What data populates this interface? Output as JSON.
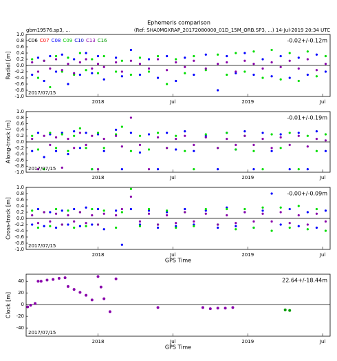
{
  "header": {
    "title": "Ephemeris comparison",
    "left": "gbm19576.sp3, ...",
    "right": "(Ref: SHA0MGXRAP_20172080000_01D_15M_ORB.SP3, ...)   14-Jul-2019 20:34 UTC"
  },
  "chart_data": [
    {
      "type": "scatter",
      "ylabel": "Radial [m]",
      "annotation": "-0.02+/-0.12m",
      "date_note": "2017/07/15",
      "legend": [
        {
          "name": "C06",
          "color": "#000000"
        },
        {
          "name": "C07",
          "color": "#ff0000"
        },
        {
          "name": "C08",
          "color": "#0000ff"
        },
        {
          "name": "C09",
          "color": "#00cc00"
        },
        {
          "name": "C10",
          "color": "#0000cc"
        },
        {
          "name": "C13",
          "color": "#8800aa"
        },
        {
          "name": "C16",
          "color": "#009900"
        }
      ],
      "xlim": [
        2017.52,
        2019.55
      ],
      "xticks": [
        {
          "value": 2018,
          "label": "2018"
        },
        {
          "value": 2018.5,
          "label": "Jul"
        },
        {
          "value": 2019,
          "label": "2019"
        },
        {
          "value": 2019.5,
          "label": "Jul"
        }
      ],
      "ylim": [
        -1,
        1
      ],
      "yticks": [
        {
          "value": -1,
          "label": "-1.0"
        },
        {
          "value": -0.8,
          "label": "-0.8"
        },
        {
          "value": -0.6,
          "label": "-0.6"
        },
        {
          "value": -0.4,
          "label": "-0.4"
        },
        {
          "value": -0.2,
          "label": "-0.2"
        },
        {
          "value": 0,
          "label": "0.0"
        },
        {
          "value": 0.2,
          "label": "0.2"
        },
        {
          "value": 0.4,
          "label": "0.4"
        },
        {
          "value": 0.6,
          "label": "0.6"
        },
        {
          "value": 0.8,
          "label": "0.8"
        },
        {
          "value": 1,
          "label": "1.0"
        }
      ],
      "x": [
        2017.56,
        2017.6,
        2017.64,
        2017.68,
        2017.72,
        2017.76,
        2017.8,
        2017.84,
        2017.88,
        2017.92,
        2017.96,
        2018.0,
        2018.04,
        2018.12,
        2018.16,
        2018.22,
        2018.28,
        2018.34,
        2018.4,
        2018.46,
        2018.52,
        2018.58,
        2018.64,
        2018.72,
        2018.8,
        2018.86,
        2018.92,
        2018.98,
        2019.04,
        2019.1,
        2019.16,
        2019.22,
        2019.28,
        2019.34,
        2019.4,
        2019.46,
        2019.52
      ],
      "series": [
        {
          "color": "#0000ff",
          "values": [
            -0.3,
            0.25,
            -0.5,
            0.3,
            -0.2,
            0.35,
            -0.6,
            0.2,
            -0.3,
            0.4,
            -0.25,
            0.3,
            -0.45,
            0.25,
            -0.35,
            0.5,
            -0.3,
            0.2,
            -0.4,
            0.3,
            -0.5,
            0.25,
            -0.3,
            0.35,
            -0.8,
            0.3,
            -0.25,
            0.4,
            -0.3,
            0.2,
            -0.35,
            0.3,
            -0.4,
            0.25,
            -0.3,
            0.35,
            -0.2
          ]
        },
        {
          "color": "#00dd00",
          "values": [
            0.2,
            -0.4,
            0.15,
            -0.7,
            0.3,
            -0.2,
            0.25,
            -0.3,
            0.4,
            -0.15,
            0.2,
            -0.25,
            0.3,
            -0.2,
            0.15,
            -0.3,
            0.25,
            -0.2,
            0.3,
            -0.6,
            0.2,
            -0.25,
            0.3,
            -0.15,
            0.35,
            -0.3,
            0.4,
            -0.2,
            0.45,
            -0.4,
            0.5,
            -0.45,
            0.4,
            -0.5,
            0.45,
            -0.35,
            0.3
          ]
        },
        {
          "color": "#8800aa",
          "values": [
            0.1,
            -0.2,
            0.15,
            -0.1,
            0.2,
            -0.15,
            0.05,
            -0.25,
            0.1,
            0.2,
            -0.1,
            0.05,
            -0.05,
            0.1,
            -0.2,
            0.15,
            0.05,
            -0.1,
            0.2,
            -0.15,
            0.1,
            -0.05,
            0.15,
            -0.1,
            0.05,
            0.1,
            -0.2,
            0.15,
            0.05,
            -0.1,
            0.1,
            -0.05,
            0.15,
            -0.1,
            0.2,
            -0.15,
            0.05
          ]
        }
      ]
    },
    {
      "type": "scatter",
      "ylabel": "Along-track [m]",
      "annotation": "-0.01+/-0.19m",
      "date_note": "2017/07/15",
      "xlim": [
        2017.52,
        2019.55
      ],
      "xticks": [
        {
          "value": 2018,
          "label": "2018"
        },
        {
          "value": 2018.5,
          "label": "Jul"
        },
        {
          "value": 2019,
          "label": "2019"
        },
        {
          "value": 2019.5,
          "label": "Jul"
        }
      ],
      "ylim": [
        -1,
        1
      ],
      "yticks": [
        {
          "value": -1,
          "label": "-1.0"
        },
        {
          "value": -0.8,
          "label": "-0.8"
        },
        {
          "value": -0.6,
          "label": "-0.6"
        },
        {
          "value": -0.4,
          "label": "-0.4"
        },
        {
          "value": -0.2,
          "label": "-0.2"
        },
        {
          "value": 0,
          "label": "0.0"
        },
        {
          "value": 0.2,
          "label": "0.2"
        },
        {
          "value": 0.4,
          "label": "0.4"
        },
        {
          "value": 0.6,
          "label": "0.6"
        },
        {
          "value": 0.8,
          "label": "0.8"
        },
        {
          "value": 1,
          "label": "1.0"
        }
      ],
      "x": [
        2017.56,
        2017.6,
        2017.64,
        2017.68,
        2017.72,
        2017.76,
        2017.8,
        2017.84,
        2017.88,
        2017.92,
        2017.96,
        2018.0,
        2018.04,
        2018.12,
        2018.16,
        2018.22,
        2018.28,
        2018.34,
        2018.4,
        2018.46,
        2018.52,
        2018.58,
        2018.64,
        2018.72,
        2018.8,
        2018.86,
        2018.92,
        2018.98,
        2019.04,
        2019.1,
        2019.16,
        2019.22,
        2019.28,
        2019.34,
        2019.4,
        2019.46,
        2019.52
      ],
      "series": [
        {
          "color": "#0000ff",
          "values": [
            -0.3,
            0.3,
            -0.5,
            0.25,
            -0.3,
            0.3,
            -0.4,
            0.35,
            -0.2,
            0.3,
            -0.9,
            0.25,
            -0.3,
            0.4,
            -0.9,
            0.3,
            -0.35,
            0.25,
            -0.9,
            0.3,
            -0.25,
            0.35,
            -0.3,
            0.2,
            -0.9,
            0.3,
            -0.25,
            0.35,
            -0.9,
            0.3,
            -0.3,
            0.25,
            -0.9,
            0.3,
            -0.9,
            0.35,
            -0.3
          ]
        },
        {
          "color": "#00dd00",
          "values": [
            0.2,
            -0.25,
            -0.9,
            0.3,
            -0.2,
            0.25,
            -0.3,
            0.2,
            0.45,
            -0.2,
            -0.9,
            0.3,
            -0.2,
            0.25,
            0.5,
            -0.3,
            0.2,
            -0.25,
            0.3,
            -0.2,
            0.2,
            -0.3,
            -0.9,
            0.25,
            -0.2,
            0.3,
            -0.25,
            0.2,
            -0.3,
            -0.9,
            0.25,
            -0.2,
            0.3,
            -0.9,
            0.2,
            -0.3,
            0.25
          ]
        },
        {
          "color": "#8800aa",
          "values": [
            0.1,
            -0.9,
            0.2,
            -0.1,
            0.15,
            -0.85,
            0.1,
            -0.2,
            0.3,
            -0.1,
            0.2,
            -0.9,
            0.1,
            0.2,
            -0.15,
            0.8,
            -0.1,
            -0.9,
            0.15,
            -0.2,
            0.1,
            0.2,
            -0.1,
            0.15,
            -0.2,
            0.1,
            -0.1,
            0.2,
            -0.1,
            0.1,
            -0.2,
            0.15,
            -0.1,
            0.2,
            -0.15,
            0.1,
            0.05
          ]
        }
      ]
    },
    {
      "type": "scatter",
      "ylabel": "Cross-track [m]",
      "annotation": "-0.00+/-0.09m",
      "date_note": "2017/07/15",
      "xlabel": "GPS Time",
      "xlim": [
        2017.52,
        2019.55
      ],
      "xticks": [
        {
          "value": 2018,
          "label": "2018"
        },
        {
          "value": 2018.5,
          "label": "Jul"
        },
        {
          "value": 2019,
          "label": "2019"
        },
        {
          "value": 2019.5,
          "label": "Jul"
        }
      ],
      "ylim": [
        -1,
        1
      ],
      "yticks": [
        {
          "value": -1,
          "label": "-1.0"
        },
        {
          "value": -0.8,
          "label": "-0.8"
        },
        {
          "value": -0.6,
          "label": "-0.6"
        },
        {
          "value": -0.4,
          "label": "-0.4"
        },
        {
          "value": -0.2,
          "label": "-0.2"
        },
        {
          "value": 0,
          "label": "0.0"
        },
        {
          "value": 0.2,
          "label": "0.2"
        },
        {
          "value": 0.4,
          "label": "0.4"
        },
        {
          "value": 0.6,
          "label": "0.6"
        },
        {
          "value": 0.8,
          "label": "0.8"
        },
        {
          "value": 1,
          "label": "1.0"
        }
      ],
      "x": [
        2017.56,
        2017.6,
        2017.64,
        2017.68,
        2017.72,
        2017.76,
        2017.8,
        2017.84,
        2017.88,
        2017.92,
        2017.96,
        2018.0,
        2018.04,
        2018.12,
        2018.16,
        2018.22,
        2018.28,
        2018.34,
        2018.4,
        2018.46,
        2018.52,
        2018.58,
        2018.64,
        2018.72,
        2018.8,
        2018.86,
        2018.92,
        2018.98,
        2019.04,
        2019.1,
        2019.16,
        2019.22,
        2019.28,
        2019.34,
        2019.4,
        2019.46,
        2019.52
      ],
      "series": [
        {
          "color": "#0000ff",
          "values": [
            -0.2,
            0.3,
            -0.25,
            0.2,
            -0.3,
            0.25,
            -0.2,
            0.3,
            -0.25,
            0.35,
            -0.2,
            0.3,
            -0.35,
            0.25,
            -0.85,
            0.3,
            -0.2,
            0.25,
            -0.3,
            0.2,
            -0.25,
            0.3,
            -0.2,
            0.25,
            -0.3,
            0.35,
            -0.25,
            0.2,
            -0.3,
            0.25,
            0.8,
            -0.2,
            0.3,
            -0.25,
            0.2,
            -0.3,
            0.25
          ]
        },
        {
          "color": "#00dd00",
          "values": [
            0.25,
            -0.3,
            0.2,
            -0.25,
            0.3,
            -0.2,
            0.25,
            -0.3,
            0.2,
            -0.25,
            0.3,
            -0.2,
            0.25,
            -0.3,
            0.2,
            0.95,
            -0.25,
            0.3,
            -0.2,
            0.25,
            -0.3,
            0.2,
            -0.25,
            0.3,
            -0.2,
            0.3,
            -0.35,
            0.3,
            -0.3,
            0.35,
            -0.4,
            0.35,
            -0.3,
            0.4,
            -0.35,
            0.3,
            -0.4
          ]
        },
        {
          "color": "#8800aa",
          "values": [
            0.1,
            -0.15,
            0.2,
            -0.1,
            0.15,
            -0.2,
            0.1,
            -0.1,
            0.2,
            -0.15,
            0.1,
            -0.2,
            0.15,
            0.1,
            0.3,
            0.7,
            -0.1,
            0.15,
            -0.2,
            0.1,
            -0.15,
            0.2,
            -0.1,
            0.15,
            -0.2,
            0.1,
            -0.15,
            0.2,
            -0.1,
            0.15,
            -0.1,
            0.2,
            -0.15,
            0.1,
            -0.2,
            0.15,
            -0.1
          ]
        }
      ]
    },
    {
      "type": "scatter",
      "ylabel": "Clock [m]",
      "annotation": "22.64+/-18.44m",
      "date_note": "2017/07/15",
      "xlabel": "GPS Time",
      "xlim": [
        2017.52,
        2019.55
      ],
      "xticks": [
        {
          "value": 2018,
          "label": "2018"
        },
        {
          "value": 2018.5,
          "label": "Jul"
        },
        {
          "value": 2019,
          "label": "2019"
        },
        {
          "value": 2019.5,
          "label": "Jul"
        }
      ],
      "ylim": [
        -54,
        52
      ],
      "yticks": [
        -40,
        -20,
        0,
        20,
        40
      ],
      "x": [
        2017.53,
        2017.55,
        2017.58,
        2017.6,
        2017.62,
        2017.66,
        2017.7,
        2017.74,
        2017.78,
        2017.8,
        2017.84,
        2017.88,
        2017.92,
        2017.96,
        2018.0,
        2018.02,
        2018.04,
        2018.08,
        2018.12,
        2018.4,
        2018.7,
        2018.75,
        2018.8,
        2018.85,
        2018.9,
        2019.25,
        2019.28
      ],
      "series": [
        {
          "color": "#8800aa",
          "values": [
            -4,
            -1,
            2,
            40,
            40,
            42,
            43,
            45,
            46,
            31,
            26,
            21,
            16,
            8,
            48,
            30,
            10,
            -12,
            44,
            -5,
            -5,
            -7,
            -6,
            -6,
            -5,
            null,
            null
          ]
        },
        {
          "color": "#009900",
          "values": [
            null,
            null,
            null,
            null,
            null,
            null,
            null,
            null,
            null,
            null,
            null,
            null,
            null,
            null,
            null,
            null,
            null,
            null,
            null,
            null,
            null,
            null,
            null,
            null,
            null,
            -9,
            -10
          ]
        }
      ]
    }
  ]
}
